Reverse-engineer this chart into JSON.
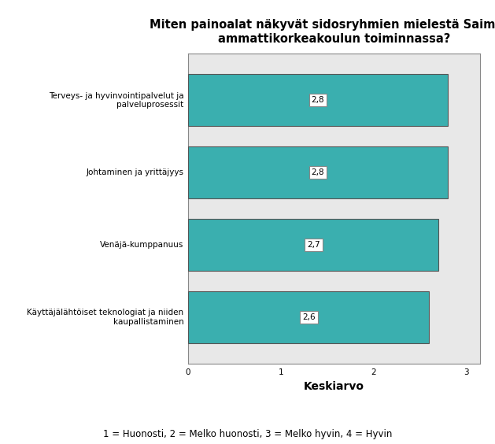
{
  "title": "Miten painoalat näkyvät sidosryhmien mielestä Saimaan\nammattikorkeakoulun toiminnassa?",
  "categories": [
    "Käyttäjälähtöiset teknologiat ja niiden\nkaupallistaminen",
    "Venäjä-kumppanuus",
    "Johtaminen ja yrittäjyys",
    "Terveys- ja hyvinvointipalvelut ja\npalveluprosessit"
  ],
  "values": [
    2.6,
    2.7,
    2.8,
    2.8
  ],
  "bar_labels": [
    "2,6",
    "2,7",
    "2,8",
    "2,8"
  ],
  "bar_color": "#3aafaf",
  "bar_edge_color": "#555555",
  "xlim": [
    0,
    3.15
  ],
  "xlabel": "Keskiarvo",
  "xlabel_fontsize": 10,
  "title_fontsize": 10.5,
  "tick_fontsize": 7.5,
  "footnote": "1 = Huonosti, 2 = Melko huonosti, 3 = Melko hyvin, 4 = Hyvin",
  "footnote_fontsize": 8.5,
  "plot_bg_color": "#e8e8e8",
  "fig_bg_color": "#ffffff",
  "bar_label_fontsize": 7.5,
  "bar_label_box_color": "#ffffff",
  "bar_label_box_edge": "#888888",
  "bar_height": 0.72,
  "spine_color": "#888888"
}
